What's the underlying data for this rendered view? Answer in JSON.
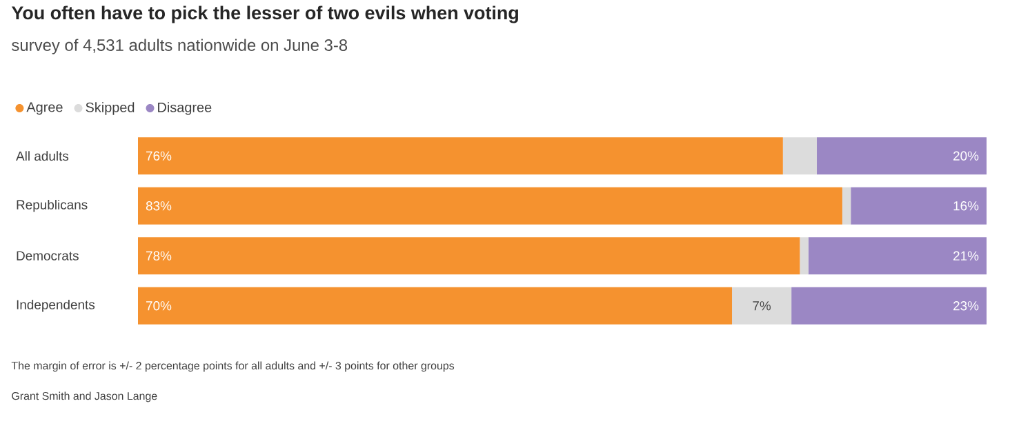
{
  "chart_data": {
    "type": "bar",
    "orientation": "horizontal",
    "stacked": true,
    "title": "You often have to pick the lesser of two evils when voting",
    "subtitle": "survey of 4,531 adults nationwide on June 3-8",
    "categories": [
      "All adults",
      "Republicans",
      "Democrats",
      "Independents"
    ],
    "series": [
      {
        "name": "Agree",
        "color": "#f5922f",
        "values": [
          76,
          83,
          78,
          70
        ],
        "value_labels": [
          "76%",
          "83%",
          "78%",
          "70%"
        ]
      },
      {
        "name": "Skipped",
        "color": "#dcdcdc",
        "values": [
          4,
          1,
          1,
          7
        ],
        "value_labels": [
          null,
          null,
          null,
          "7%"
        ]
      },
      {
        "name": "Disagree",
        "color": "#9b87c4",
        "values": [
          20,
          16,
          21,
          23
        ],
        "value_labels": [
          "20%",
          "16%",
          "21%",
          "23%"
        ]
      }
    ],
    "xlim": [
      0,
      100
    ],
    "tick_labels": "y",
    "legend": "top left",
    "annotations": [
      "The margin of error is +/- 2 percentage points for all adults and +/- 3 points for other groups",
      "Grant Smith and Jason Lange"
    ]
  }
}
